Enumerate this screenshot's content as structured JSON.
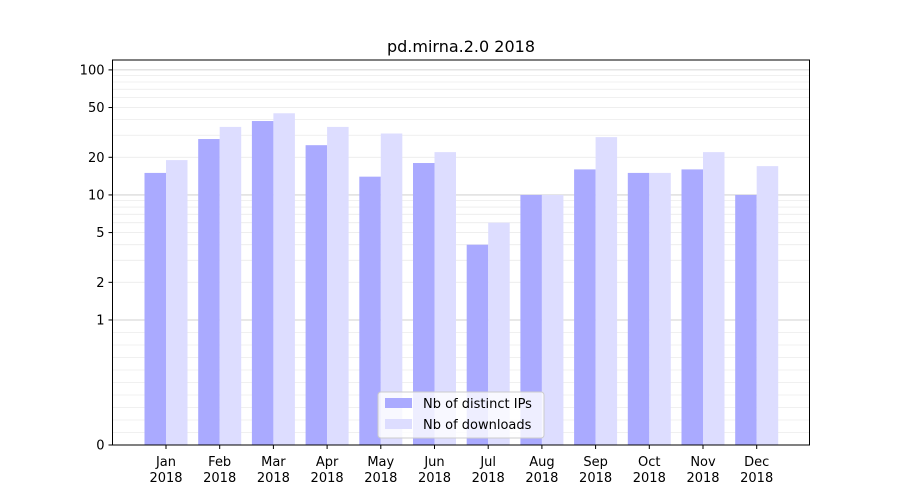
{
  "chart_data": {
    "type": "bar",
    "title": "pd.mirna.2.0 2018",
    "xlabel": "",
    "ylabel": "",
    "yscale": "symlog",
    "ylim": [
      0,
      120
    ],
    "yticks": [
      0,
      1,
      2,
      5,
      10,
      20,
      50,
      100
    ],
    "ytick_labels": [
      "0",
      "1",
      "2",
      "5",
      "10",
      "20",
      "50",
      "100"
    ],
    "categories": [
      "Jan",
      "Feb",
      "Mar",
      "Apr",
      "May",
      "Jun",
      "Jul",
      "Aug",
      "Sep",
      "Oct",
      "Nov",
      "Dec"
    ],
    "category_year": "2018",
    "grid": "horizontal",
    "legend_position": "lower center",
    "series": [
      {
        "name": "Nb of distinct IPs",
        "color": "#aaaaff",
        "values": [
          15,
          28,
          39,
          25,
          14,
          18,
          4,
          10,
          16,
          15,
          16,
          10
        ]
      },
      {
        "name": "Nb of downloads",
        "color": "#ddddff",
        "values": [
          19,
          35,
          45,
          35,
          31,
          22,
          6,
          10,
          29,
          15,
          22,
          17
        ]
      }
    ]
  }
}
